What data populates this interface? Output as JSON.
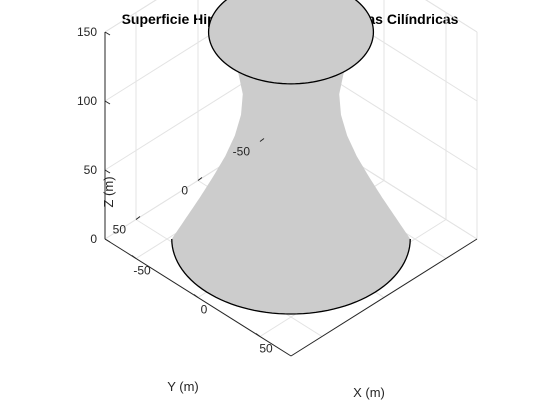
{
  "chart_data": {
    "type": "surface",
    "title": "Superficie Hiperbólica en Coordenadas Cilíndricas",
    "xlabel": "X (m)",
    "ylabel": "Y (m)",
    "zlabel": "Z (m)",
    "xlim": [
      -75,
      75
    ],
    "ylim": [
      -75,
      75
    ],
    "zlim": [
      0,
      150
    ],
    "xticks": [
      "-50",
      "0",
      "50"
    ],
    "yticks": [
      "-50",
      "0",
      "50"
    ],
    "zticks": [
      "0",
      "50",
      "100",
      "150"
    ],
    "grid": true,
    "surface_color": "#cccccc",
    "edge_color": "#000000",
    "profile": {
      "z": [
        0,
        15,
        30,
        45,
        60,
        75,
        90,
        105,
        120,
        135,
        150
      ],
      "radius": [
        68,
        60,
        52,
        44.5,
        37.5,
        32,
        28.5,
        27.5,
        30,
        37,
        47
      ]
    }
  }
}
